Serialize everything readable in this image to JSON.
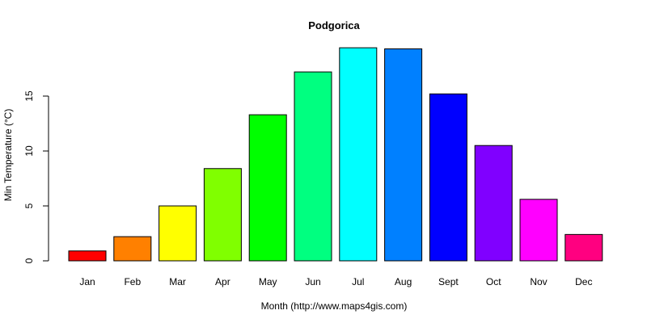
{
  "chart_data": {
    "type": "bar",
    "title": "Podgorica",
    "xlabel": "Month (http://www.maps4gis.com)",
    "ylabel": "Min Temperature (°C)",
    "categories": [
      "Jan",
      "Feb",
      "Mar",
      "Apr",
      "May",
      "Jun",
      "Jul",
      "Aug",
      "Sept",
      "Oct",
      "Nov",
      "Dec"
    ],
    "values": [
      0.9,
      2.2,
      5.0,
      8.4,
      13.3,
      17.2,
      19.4,
      19.3,
      15.2,
      10.5,
      5.6,
      2.4
    ],
    "colors": [
      "#FF0000",
      "#FF8000",
      "#FFFF00",
      "#80FF00",
      "#00FF00",
      "#00FF80",
      "#00FFFF",
      "#0080FF",
      "#0000FF",
      "#8000FF",
      "#FF00FF",
      "#FF0080"
    ],
    "yticks": [
      0,
      5,
      10,
      15
    ],
    "ylim": [
      0,
      20
    ],
    "grid": false,
    "legend": "none"
  }
}
